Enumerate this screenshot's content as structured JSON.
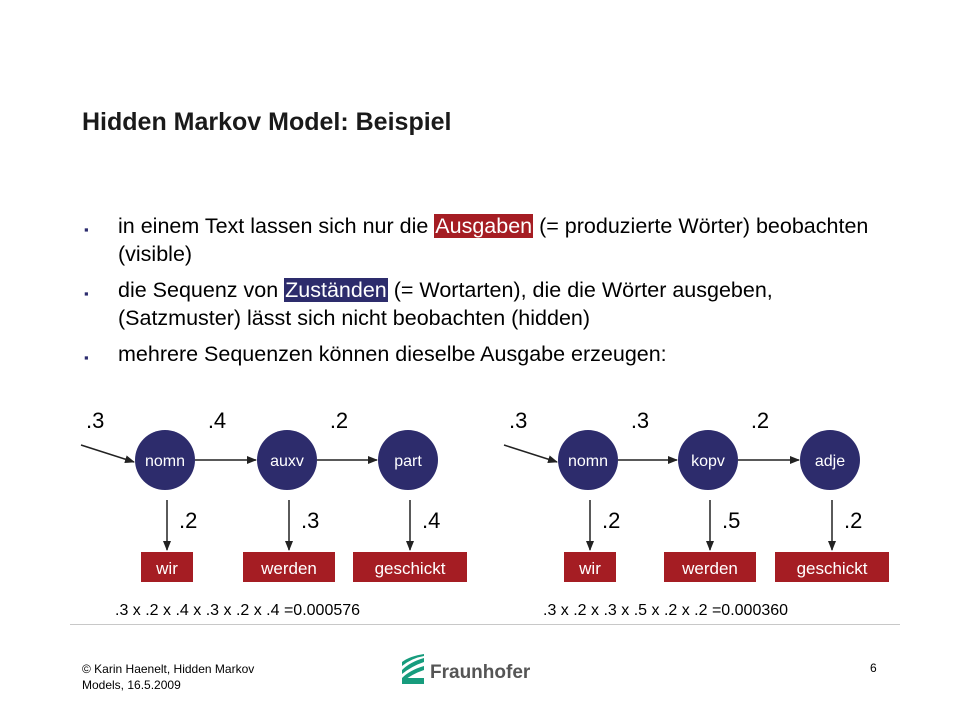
{
  "title": "Hidden Markov Model: Beispiel",
  "bullets": [
    {
      "pre": "in einem Text lassen sich nur die ",
      "highlight": "Ausgaben",
      "post": " (= produzierte Wörter) beobachten (visible)"
    },
    {
      "pre": "die Sequenz von ",
      "highlight": "Zuständen",
      "post": " (= Wortarten), die die Wörter ausgeben, (Satzmuster) lässt sich nicht beobachten (hidden)"
    },
    {
      "pre": "mehrere Sequenzen können dieselbe Ausgabe erzeugen:",
      "highlight": "",
      "post": ""
    }
  ],
  "diagrams": [
    {
      "start_prob": ".3",
      "states": [
        "nomn",
        "auxv",
        "part"
      ],
      "transition_probs": [
        ".4",
        ".2"
      ],
      "emission_probs": [
        ".2",
        ".3",
        ".4"
      ],
      "outputs": [
        "wir",
        "werden",
        "geschickt"
      ],
      "formula": ".3 x .2 x .4 x .3 x .2 x .4 =0.000576"
    },
    {
      "start_prob": ".3",
      "states": [
        "nomn",
        "kopv",
        "adje"
      ],
      "transition_probs": [
        ".3",
        ".2"
      ],
      "emission_probs": [
        ".2",
        ".5",
        ".2"
      ],
      "outputs": [
        "wir",
        "werden",
        "geschickt"
      ],
      "formula": ".3 x .2 x .3 x .5 x .2 x .2 =0.000360"
    }
  ],
  "footer": {
    "copyright_line1": "© Karin  Haenelt, Hidden Markov",
    "copyright_line2": "Models, 16.5.2009",
    "page_number": "6",
    "logo_text": "Fraunhofer"
  },
  "colors": {
    "state_fill": "#2d2c6c",
    "output_fill": "#a51d23",
    "highlight_red": "#a51d23",
    "highlight_blue": "#2d2c6c",
    "logo_green": "#179c7d"
  }
}
